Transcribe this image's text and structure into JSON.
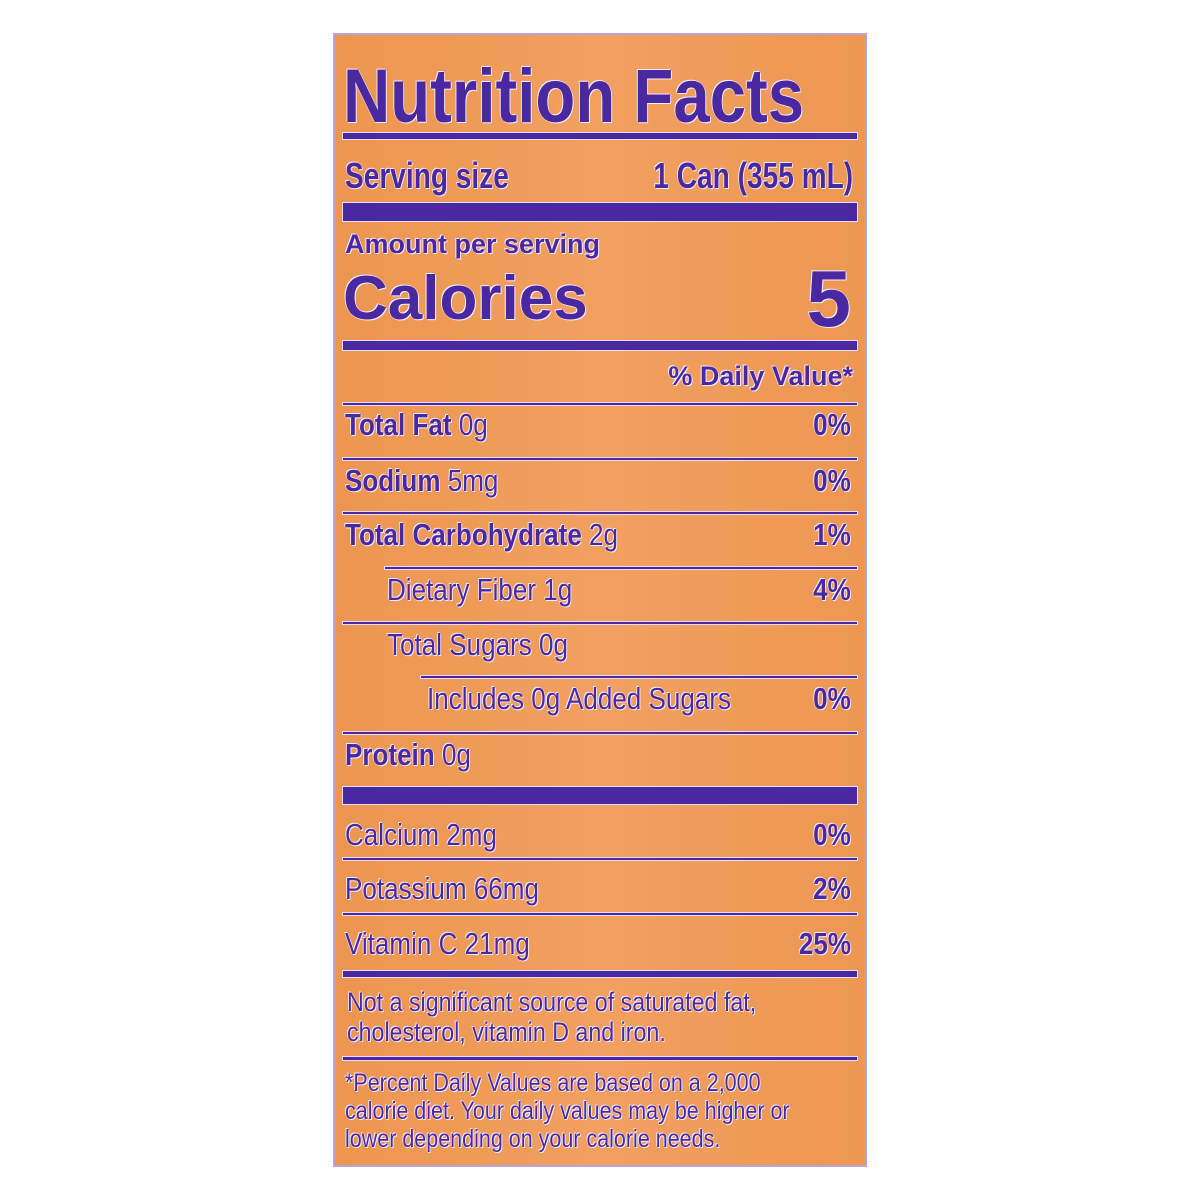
{
  "title": "Nutrition Facts",
  "serving": {
    "label": "Serving size",
    "value": "1 Can (355 mL)"
  },
  "amount_per_serving": "Amount per serving",
  "calories": {
    "label": "Calories",
    "value": "5"
  },
  "daily_value_header": "% Daily Value*",
  "nutrients": [
    {
      "label": "Total Fat",
      "amount": "0g",
      "dv": "0%",
      "bold": true,
      "indent": 0
    },
    {
      "label": "Sodium",
      "amount": "5mg",
      "dv": "0%",
      "bold": true,
      "indent": 0
    },
    {
      "label": "Total Carbohydrate",
      "amount": "2g",
      "dv": "1%",
      "bold": true,
      "indent": 0
    },
    {
      "label": "Dietary Fiber",
      "amount": "1g",
      "dv": "4%",
      "bold": false,
      "indent": 1
    },
    {
      "label": "Total Sugars",
      "amount": "0g",
      "dv": "",
      "bold": false,
      "indent": 1
    },
    {
      "label": "Includes 0g Added Sugars",
      "amount": "",
      "dv": "0%",
      "bold": false,
      "indent": 2
    },
    {
      "label": "Protein",
      "amount": "0g",
      "dv": "",
      "bold": true,
      "indent": 0
    }
  ],
  "vitamins": [
    {
      "label": "Calcium",
      "amount": "2mg",
      "dv": "0%"
    },
    {
      "label": "Potassium",
      "amount": "66mg",
      "dv": "2%"
    },
    {
      "label": "Vitamin C",
      "amount": "21mg",
      "dv": "25%"
    }
  ],
  "not_significant": "Not a significant source of saturated fat, cholesterol, vitamin D and iron.",
  "footnote": "*Percent Daily Values are based on a 2,000 calorie diet. Your daily values may be higher or lower depending on your calorie needs.",
  "colors": {
    "background": "#ef9b55",
    "ink": "#4a28a0"
  }
}
